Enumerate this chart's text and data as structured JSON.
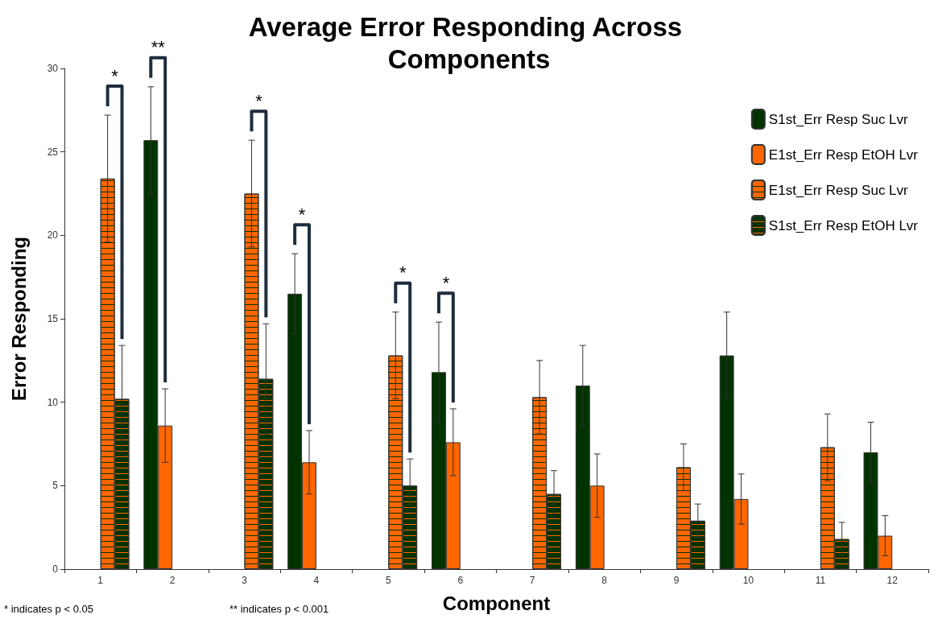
{
  "chart_data": {
    "type": "bar",
    "title": "Average Error Responding Across Components",
    "xlabel": "Component",
    "ylabel": "Error Responding",
    "categories": [
      "1",
      "2",
      "3",
      "4",
      "5",
      "6",
      "7",
      "8",
      "9",
      "10",
      "11",
      "12"
    ],
    "series": [
      {
        "name": "S1st_Err Resp Suc Lvr",
        "color": "#003300",
        "values": [
          null,
          25.7,
          null,
          16.5,
          null,
          11.8,
          null,
          11.0,
          null,
          12.8,
          null,
          7.0
        ],
        "errors": [
          null,
          3.2,
          null,
          2.4,
          null,
          3.0,
          null,
          2.4,
          null,
          2.6,
          null,
          1.8
        ]
      },
      {
        "name": "E1st_Err Resp EtOH Lvr",
        "color": "#ff6600",
        "values": [
          null,
          8.6,
          null,
          6.4,
          null,
          7.6,
          null,
          5.0,
          null,
          4.2,
          null,
          2.0
        ],
        "errors": [
          null,
          2.2,
          null,
          1.9,
          null,
          2.0,
          null,
          1.9,
          null,
          1.5,
          null,
          1.2
        ]
      },
      {
        "name": "E1st_Err Resp Suc Lvr",
        "color": "#ff6600",
        "values": [
          23.4,
          null,
          22.5,
          null,
          12.8,
          null,
          10.3,
          null,
          6.1,
          null,
          7.3,
          null
        ],
        "errors": [
          3.8,
          null,
          3.2,
          null,
          2.6,
          null,
          2.2,
          null,
          1.4,
          null,
          2.0,
          null
        ]
      },
      {
        "name": "S1st_Err Resp EtOH Lvr",
        "color": "#003300",
        "values": [
          10.2,
          null,
          11.4,
          null,
          5.0,
          null,
          4.5,
          null,
          2.9,
          null,
          1.8,
          null
        ],
        "errors": [
          3.2,
          null,
          3.3,
          null,
          1.6,
          null,
          1.4,
          null,
          1.0,
          null,
          1.0,
          null
        ]
      }
    ],
    "ylim": [
      0,
      30
    ],
    "yticks": [
      0,
      5,
      10,
      15,
      20,
      25,
      30
    ],
    "grid": false,
    "legend": "top right",
    "annotations": [
      "*",
      "**",
      "*",
      "*",
      "*",
      "*",
      "* indicates p < 0.05",
      "** indicates p < 0.001"
    ]
  }
}
